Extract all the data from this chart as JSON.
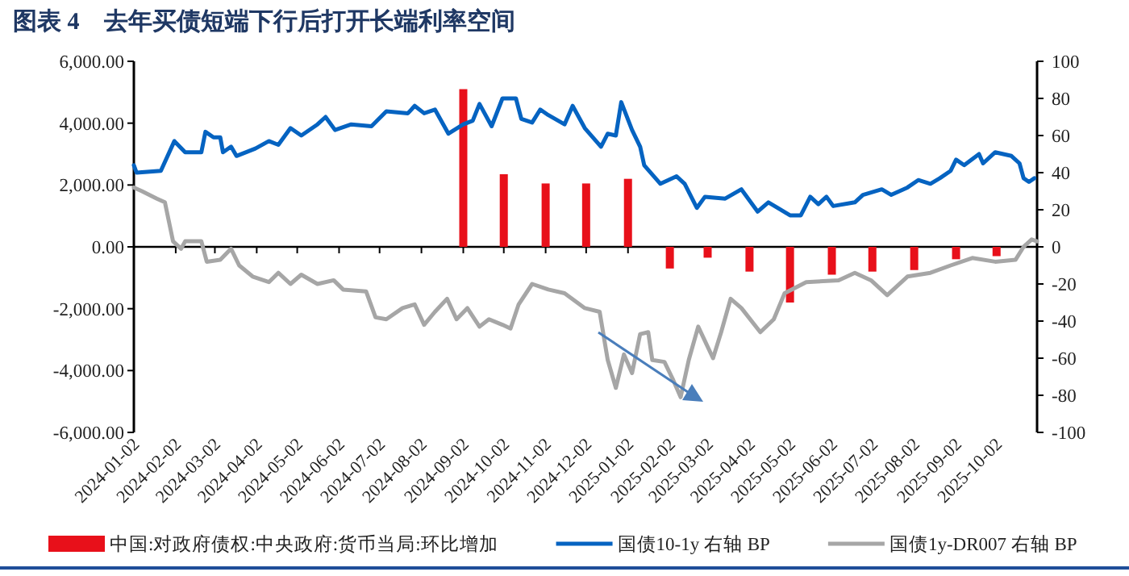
{
  "chart_data": {
    "type": "line",
    "title": "图表 4　去年买债短端下行后打开长端利率空间",
    "xlim": [
      "2024-01-02",
      "2025-11-01"
    ],
    "xticks": [
      "2024-01-02",
      "2024-02-02",
      "2024-03-02",
      "2024-04-02",
      "2024-05-02",
      "2024-06-02",
      "2024-07-02",
      "2024-08-02",
      "2024-09-02",
      "2024-10-02",
      "2024-11-02",
      "2024-12-02",
      "2025-01-02",
      "2025-02-02",
      "2025-03-02",
      "2025-04-02",
      "2025-05-02",
      "2025-06-02",
      "2025-07-02",
      "2025-08-02",
      "2025-09-02",
      "2025-10-02"
    ],
    "ylim": [
      -6000,
      6000
    ],
    "yticks": [
      {
        "value": -6000,
        "label": "-6,000.00"
      },
      {
        "value": -4000,
        "label": "-4,000.00"
      },
      {
        "value": -2000,
        "label": "-2,000.00"
      },
      {
        "value": 0,
        "label": "0.00"
      },
      {
        "value": 2000,
        "label": "2,000.00"
      },
      {
        "value": 4000,
        "label": "4,000.00"
      },
      {
        "value": 6000,
        "label": "6,000.00"
      }
    ],
    "y2lim": [
      -100,
      100
    ],
    "y2ticks": [
      -100,
      -80,
      -60,
      -40,
      -20,
      0,
      20,
      40,
      60,
      80,
      100
    ],
    "legend": "bottom",
    "series": [
      {
        "name": "中国:对政府债权:中央政府:货币当局:环比增加",
        "type": "bar",
        "color": "#e8101a",
        "x": [
          "2024-09-02",
          "2024-10-02",
          "2024-11-02",
          "2024-12-02",
          "2025-01-02",
          "2025-02-02",
          "2025-03-02",
          "2025-04-02",
          "2025-05-02",
          "2025-06-02",
          "2025-07-02",
          "2025-08-02",
          "2025-09-02",
          "2025-10-02"
        ],
        "values": [
          5100,
          2350,
          2050,
          2050,
          2200,
          -700,
          -350,
          -800,
          -1800,
          -900,
          -800,
          -750,
          -400,
          -300
        ]
      },
      {
        "name": "国债10-1y 右轴 BP",
        "axis": "y2",
        "color": "#0563c1",
        "x": [
          "2024-01-02",
          "2024-01-04",
          "2024-01-22",
          "2024-02-01",
          "2024-02-09",
          "2024-02-21",
          "2024-02-24",
          "2024-03-01",
          "2024-03-06",
          "2024-03-08",
          "2024-03-14",
          "2024-03-18",
          "2024-04-01",
          "2024-04-11",
          "2024-04-18",
          "2024-04-27",
          "2024-05-05",
          "2024-05-17",
          "2024-05-23",
          "2024-05-30",
          "2024-06-11",
          "2024-06-26",
          "2024-07-07",
          "2024-07-23",
          "2024-07-28",
          "2024-08-04",
          "2024-08-12",
          "2024-08-22",
          "2024-09-02",
          "2024-09-09",
          "2024-09-14",
          "2024-09-23",
          "2024-10-01",
          "2024-10-11",
          "2024-10-15",
          "2024-10-23",
          "2024-10-29",
          "2024-11-04",
          "2024-11-16",
          "2024-11-22",
          "2024-12-01",
          "2024-12-13",
          "2024-12-18",
          "2024-12-24",
          "2024-12-28",
          "2025-01-05",
          "2025-01-11",
          "2025-01-14",
          "2025-01-26",
          "2025-02-07",
          "2025-02-13",
          "2025-02-22",
          "2025-02-28",
          "2025-03-15",
          "2025-03-27",
          "2025-04-08",
          "2025-04-16",
          "2025-05-02",
          "2025-05-10",
          "2025-05-17",
          "2025-05-23",
          "2025-05-29",
          "2025-06-03",
          "2025-06-19",
          "2025-06-25",
          "2025-07-09",
          "2025-07-16",
          "2025-07-28",
          "2025-08-05",
          "2025-08-14",
          "2025-08-21",
          "2025-08-29",
          "2025-09-02",
          "2025-09-08",
          "2025-09-19",
          "2025-09-22",
          "2025-10-01",
          "2025-10-13",
          "2025-10-19",
          "2025-10-22",
          "2025-10-26",
          "2025-10-30"
        ],
        "values": [
          44,
          40,
          41,
          57,
          51,
          51,
          62,
          59,
          59,
          51,
          54,
          49,
          53,
          57,
          55,
          64,
          60,
          66,
          70,
          63,
          66,
          65,
          73,
          72,
          76,
          72,
          74,
          61,
          66,
          68,
          77,
          65,
          80,
          80,
          69,
          67,
          74,
          71,
          66,
          76,
          64,
          54,
          61,
          60,
          78,
          63,
          54,
          44,
          34,
          38,
          34,
          21,
          27,
          26,
          31,
          19,
          24,
          17,
          17,
          27,
          23,
          27,
          22,
          24,
          28,
          31,
          28,
          32,
          36,
          34,
          37,
          41,
          47,
          44,
          50,
          45,
          51,
          49,
          45,
          37,
          35,
          37
        ]
      },
      {
        "name": "国债1y-DR007 右轴 BP",
        "axis": "y2",
        "color": "#a6a6a6",
        "x": [
          "2024-01-02",
          "2024-01-08",
          "2024-01-19",
          "2024-01-25",
          "2024-01-31",
          "2024-02-06",
          "2024-02-09",
          "2024-02-21",
          "2024-02-25",
          "2024-03-06",
          "2024-03-14",
          "2024-03-20",
          "2024-03-30",
          "2024-04-11",
          "2024-04-18",
          "2024-04-27",
          "2024-05-05",
          "2024-05-17",
          "2024-05-29",
          "2024-06-05",
          "2024-06-22",
          "2024-06-29",
          "2024-07-07",
          "2024-07-19",
          "2024-07-28",
          "2024-08-04",
          "2024-08-12",
          "2024-08-21",
          "2024-08-28",
          "2024-09-05",
          "2024-09-14",
          "2024-09-21",
          "2024-10-01",
          "2024-10-07",
          "2024-10-13",
          "2024-10-23",
          "2024-11-04",
          "2024-11-16",
          "2024-12-01",
          "2024-12-12",
          "2024-12-18",
          "2024-12-24",
          "2024-12-30",
          "2025-01-05",
          "2025-01-11",
          "2025-01-17",
          "2025-01-20",
          "2025-01-29",
          "2025-02-04",
          "2025-02-10",
          "2025-02-16",
          "2025-02-23",
          "2025-03-06",
          "2025-03-12",
          "2025-03-19",
          "2025-03-27",
          "2025-04-10",
          "2025-04-20",
          "2025-04-28",
          "2025-05-14",
          "2025-06-07",
          "2025-06-19",
          "2025-07-01",
          "2025-07-13",
          "2025-07-28",
          "2025-08-14",
          "2025-08-29",
          "2025-09-14",
          "2025-10-01",
          "2025-10-16",
          "2025-10-22",
          "2025-10-28",
          "2025-11-01"
        ],
        "values": [
          32,
          30,
          26,
          24,
          3,
          -1,
          3,
          3,
          -8,
          -7,
          -1,
          -10,
          -16,
          -19,
          -14,
          -20,
          -15,
          -20,
          -18,
          -23,
          -24,
          -38,
          -39,
          -33,
          -31,
          -42,
          -35,
          -28,
          -39,
          -33,
          -43,
          -39,
          -42,
          -44,
          -31,
          -20,
          -23,
          -25,
          -33,
          -35,
          -61,
          -76,
          -58,
          -68,
          -47,
          -46,
          -61,
          -62,
          -71,
          -81,
          -61,
          -43,
          -60,
          -46,
          -28,
          -33,
          -46,
          -39,
          -25,
          -19,
          -18,
          -14,
          -18,
          -26,
          -16,
          -14,
          -10,
          -6,
          -8,
          -7,
          0,
          4,
          3
        ]
      }
    ]
  }
}
